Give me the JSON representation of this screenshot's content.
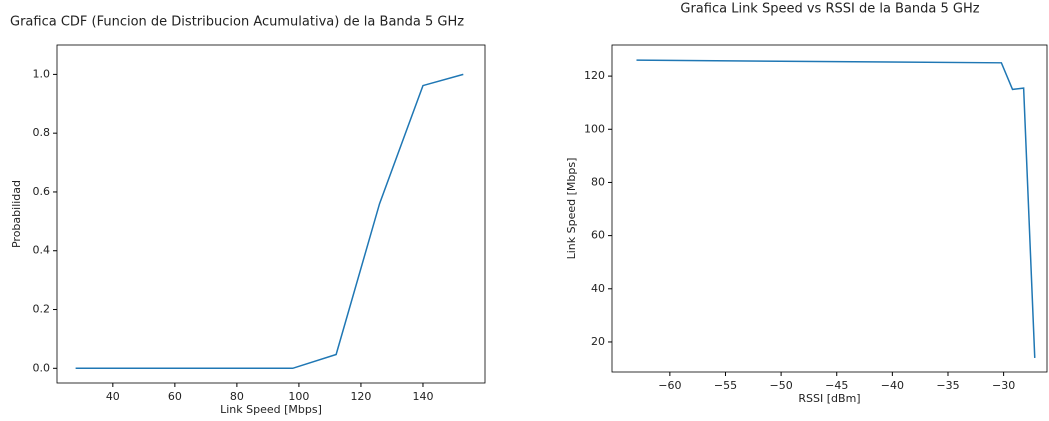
{
  "chart_data": [
    {
      "type": "line",
      "title": "Grafica CDF (Funcion de Distribucion Acumulativa) de la Banda 5 GHz",
      "xlabel": "Link Speed [Mbps]",
      "ylabel": "Probabilidad",
      "x": [
        28,
        98,
        112,
        126,
        140,
        153
      ],
      "series": [
        {
          "name": "CDF",
          "color": "#1f77b4",
          "values": [
            0.0,
            0.0,
            0.047,
            0.56,
            0.962,
            1.0
          ]
        }
      ],
      "xlim": [
        22,
        160
      ],
      "ylim": [
        -0.05,
        1.1
      ],
      "xticks": [
        40,
        60,
        80,
        100,
        120,
        140
      ],
      "yticks": [
        {
          "value": 0,
          "label": "0.0"
        },
        0.2,
        0.4,
        0.6,
        0.8,
        {
          "value": 1,
          "label": "1.0"
        }
      ]
    },
    {
      "type": "line",
      "title": "Grafica Link Speed vs RSSI de la Banda 5 GHz",
      "xlabel": "RSSI [dBm]",
      "ylabel": "Link Speed [Mbps]",
      "x": [
        -63,
        -30.2,
        -29.2,
        -28.2,
        -27.2
      ],
      "series": [
        {
          "name": "Link Speed",
          "color": "#1f77b4",
          "values": [
            126,
            125,
            115,
            115.5,
            14
          ]
        }
      ],
      "xlim": [
        -65.2,
        -26.1
      ],
      "ylim": [
        8.7,
        131.7
      ],
      "xticks": [
        {
          "value": -60,
          "label": "−60"
        },
        {
          "value": -55,
          "label": "−55"
        },
        {
          "value": -50,
          "label": "−50"
        },
        {
          "value": -45,
          "label": "−45"
        },
        {
          "value": -40,
          "label": "−40"
        },
        {
          "value": -35,
          "label": "−35"
        },
        {
          "value": -30,
          "label": "−30"
        }
      ],
      "yticks": [
        20,
        40,
        60,
        80,
        100,
        120
      ]
    }
  ]
}
